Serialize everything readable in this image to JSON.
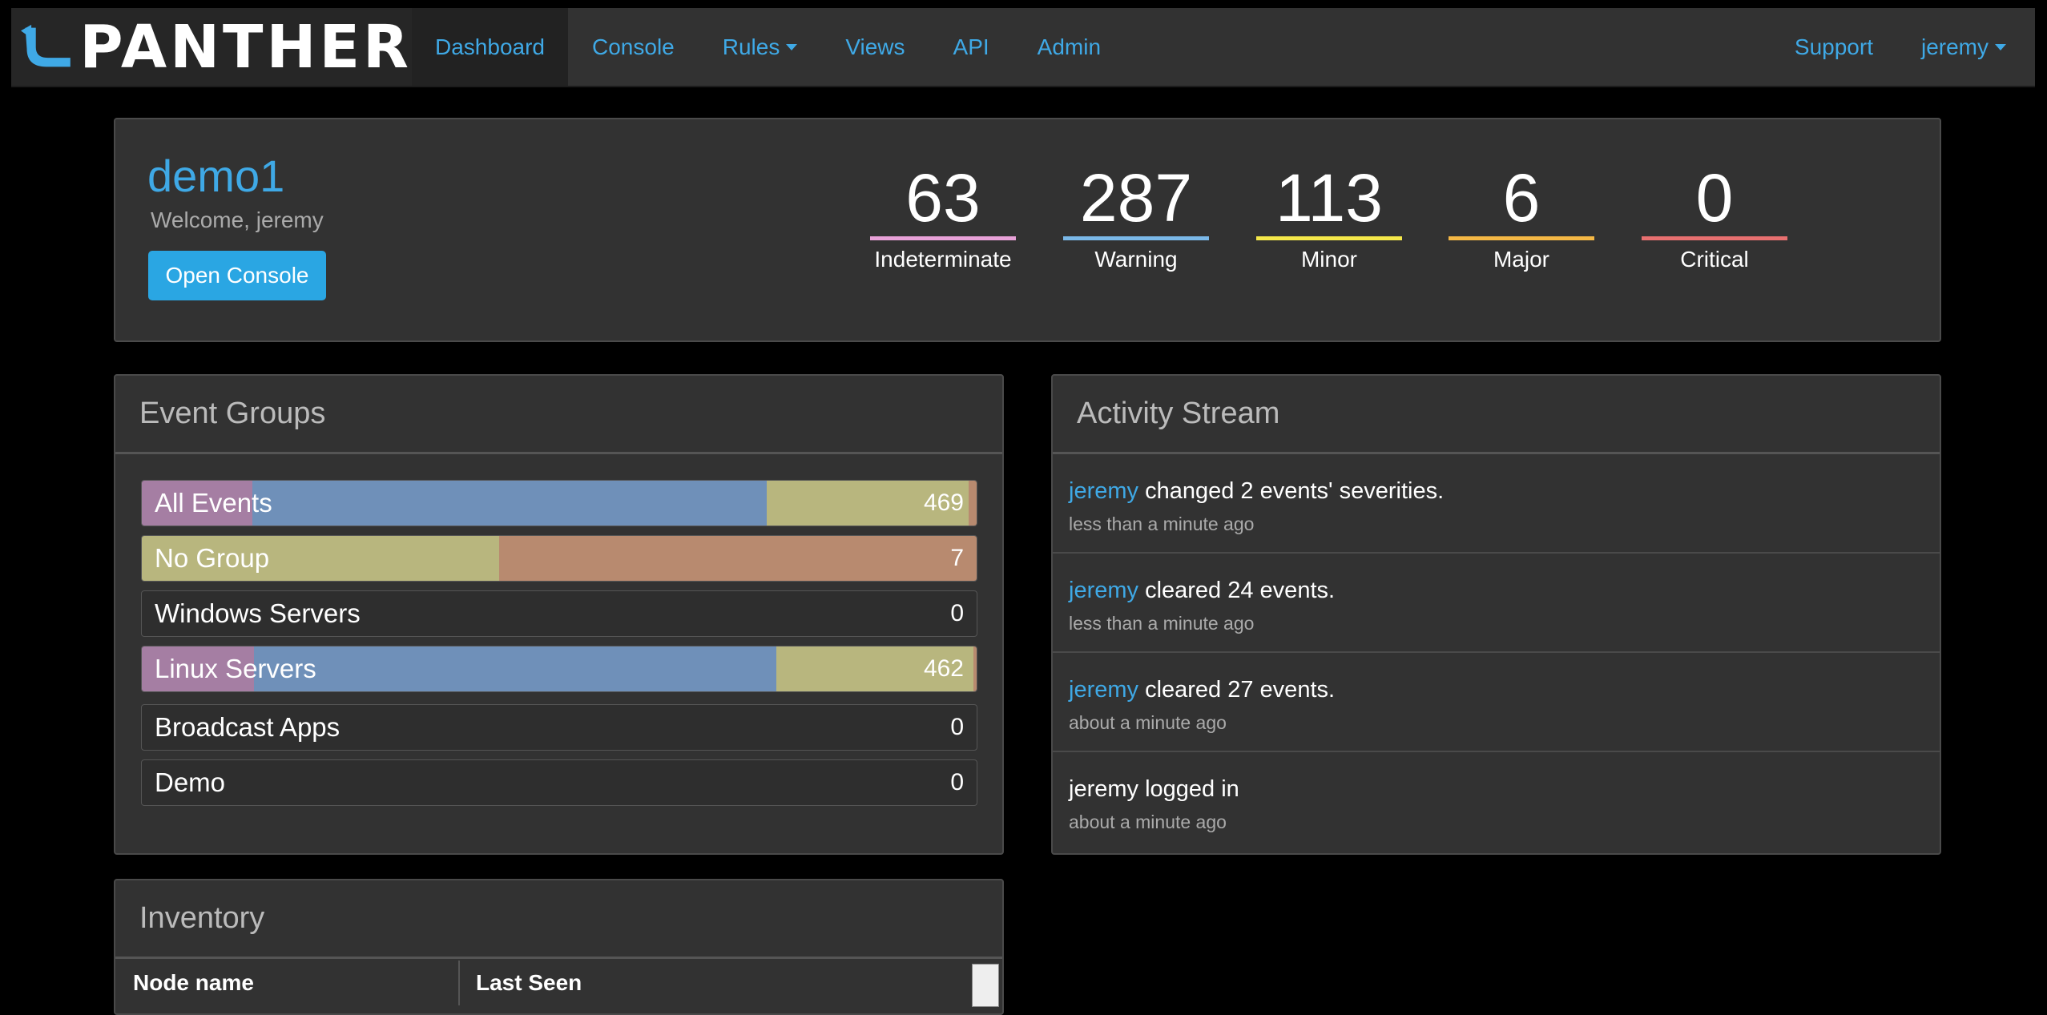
{
  "nav": {
    "brand": "PANTHER",
    "items": [
      "Dashboard",
      "Console",
      "Rules",
      "Views",
      "API",
      "Admin"
    ],
    "support": "Support",
    "user": "jeremy"
  },
  "summary": {
    "instance": "demo1",
    "welcome": "Welcome, jeremy",
    "open_console": "Open Console",
    "severities": [
      {
        "count": "63",
        "label": "Indeterminate",
        "color": "#e8a1d8"
      },
      {
        "count": "287",
        "label": "Warning",
        "color": "#7ab8e8"
      },
      {
        "count": "113",
        "label": "Minor",
        "color": "#f5e84a"
      },
      {
        "count": "6",
        "label": "Major",
        "color": "#f5b845"
      },
      {
        "count": "0",
        "label": "Critical",
        "color": "#e87070"
      }
    ]
  },
  "event_groups": {
    "title": "Event Groups",
    "rows": [
      {
        "name": "All Events",
        "count": "469"
      },
      {
        "name": "No Group",
        "count": "7"
      },
      {
        "name": "Windows Servers",
        "count": "0"
      },
      {
        "name": "Linux Servers",
        "count": "462"
      },
      {
        "name": "Broadcast Apps",
        "count": "0"
      },
      {
        "name": "Demo",
        "count": "0"
      }
    ]
  },
  "activity": {
    "title": "Activity Stream",
    "items": [
      {
        "user": "jeremy",
        "text": " changed 2 events' severities.",
        "time": "less than a minute ago"
      },
      {
        "user": "jeremy",
        "text": " cleared 24 events.",
        "time": "less than a minute ago"
      },
      {
        "user": "jeremy",
        "text": " cleared 27 events.",
        "time": "about a minute ago"
      },
      {
        "user": "",
        "text": "jeremy logged in",
        "time": "about a minute ago"
      }
    ]
  },
  "inventory": {
    "title": "Inventory",
    "columns": [
      "Node name",
      "Last Seen"
    ]
  }
}
